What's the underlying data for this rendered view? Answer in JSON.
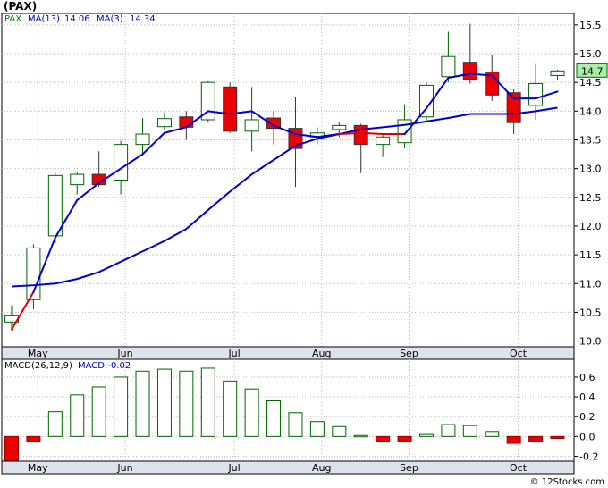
{
  "chart_data": [
    {
      "type": "candlestick",
      "ticker_label": "(PAX)",
      "legend": {
        "symbol": "PAX",
        "ma_fast_label": "MA(13)",
        "ma_fast_value": "14.06",
        "ma_slow_label": "MA(3)",
        "ma_slow_value": "14.34"
      },
      "last_price_label": "14.7",
      "ylim": [
        9.9,
        15.7
      ],
      "yticks": [
        "10.0",
        "10.5",
        "11.0",
        "11.5",
        "12.0",
        "12.5",
        "13.0",
        "13.5",
        "14.0",
        "14.5",
        "15.0",
        "15.5"
      ],
      "months": [
        {
          "label": "May",
          "pos": 1.2
        },
        {
          "label": "Jun",
          "pos": 5.2
        },
        {
          "label": "Jul",
          "pos": 10.2
        },
        {
          "label": "Aug",
          "pos": 14.2
        },
        {
          "label": "Sep",
          "pos": 18.2
        },
        {
          "label": "Oct",
          "pos": 23.2
        }
      ],
      "candles": [
        {
          "open": 10.33,
          "high": 10.62,
          "low": 10.2,
          "close": 10.45,
          "up": true
        },
        {
          "open": 10.72,
          "high": 11.68,
          "low": 10.55,
          "close": 11.62,
          "up": true
        },
        {
          "open": 11.83,
          "high": 12.92,
          "low": 11.7,
          "close": 12.88,
          "up": true
        },
        {
          "open": 12.72,
          "high": 12.95,
          "low": 12.55,
          "close": 12.9,
          "up": true
        },
        {
          "open": 12.9,
          "high": 13.3,
          "low": 12.68,
          "close": 12.72,
          "up": false
        },
        {
          "open": 12.8,
          "high": 13.48,
          "low": 12.55,
          "close": 13.42,
          "up": true
        },
        {
          "open": 13.42,
          "high": 13.88,
          "low": 13.25,
          "close": 13.6,
          "up": true
        },
        {
          "open": 13.73,
          "high": 13.98,
          "low": 13.68,
          "close": 13.87,
          "up": true
        },
        {
          "open": 13.9,
          "high": 14.0,
          "low": 13.5,
          "close": 13.72,
          "up": false
        },
        {
          "open": 13.85,
          "high": 14.52,
          "low": 13.8,
          "close": 14.5,
          "up": true
        },
        {
          "open": 14.42,
          "high": 14.5,
          "low": 13.62,
          "close": 13.65,
          "up": false
        },
        {
          "open": 13.65,
          "high": 14.42,
          "low": 13.3,
          "close": 13.85,
          "up": true
        },
        {
          "open": 13.88,
          "high": 14.0,
          "low": 13.42,
          "close": 13.7,
          "up": false
        },
        {
          "open": 13.7,
          "high": 14.25,
          "low": 12.68,
          "close": 13.35,
          "up": false
        },
        {
          "open": 13.55,
          "high": 13.72,
          "low": 13.42,
          "close": 13.62,
          "up": true
        },
        {
          "open": 13.68,
          "high": 13.8,
          "low": 13.55,
          "close": 13.75,
          "up": true
        },
        {
          "open": 13.75,
          "high": 13.78,
          "low": 12.92,
          "close": 13.42,
          "up": false
        },
        {
          "open": 13.42,
          "high": 13.6,
          "low": 13.2,
          "close": 13.55,
          "up": true
        },
        {
          "open": 13.45,
          "high": 14.12,
          "low": 13.35,
          "close": 13.85,
          "up": true
        },
        {
          "open": 13.9,
          "high": 14.5,
          "low": 13.8,
          "close": 14.45,
          "up": true
        },
        {
          "open": 14.6,
          "high": 15.38,
          "low": 14.5,
          "close": 14.95,
          "up": true
        },
        {
          "open": 14.85,
          "high": 15.52,
          "low": 14.48,
          "close": 14.55,
          "up": false
        },
        {
          "open": 14.68,
          "high": 14.98,
          "low": 14.18,
          "close": 14.28,
          "up": false
        },
        {
          "open": 14.32,
          "high": 14.38,
          "low": 13.6,
          "close": 13.8,
          "up": false
        },
        {
          "open": 14.1,
          "high": 14.82,
          "low": 13.85,
          "close": 14.48,
          "up": true
        },
        {
          "open": 14.62,
          "high": 14.72,
          "low": 14.55,
          "close": 14.7,
          "up": true
        }
      ],
      "ma_slow": [
        10.2,
        10.85,
        11.8,
        12.45,
        12.75,
        13.0,
        13.25,
        13.62,
        13.72,
        14.0,
        13.95,
        14.0,
        13.75,
        13.6,
        13.55,
        13.6,
        13.62,
        13.6,
        13.6,
        14.05,
        14.58,
        14.65,
        14.62,
        14.22,
        14.22,
        14.34
      ],
      "ma_fast": [
        10.95,
        10.97,
        11.0,
        11.08,
        11.2,
        11.38,
        11.56,
        11.74,
        11.95,
        12.28,
        12.6,
        12.9,
        13.15,
        13.4,
        13.52,
        13.6,
        13.68,
        13.72,
        13.76,
        13.82,
        13.88,
        13.95,
        13.95,
        13.95,
        14.0,
        14.06
      ]
    },
    {
      "type": "bar",
      "legend": {
        "label": "MACD(26,12,9)",
        "value_label": "MACD:-0.02"
      },
      "ylim": [
        -0.25,
        0.78
      ],
      "yticks": [
        "-0.2",
        "0.0",
        "0.2",
        "0.4",
        "0.6"
      ],
      "values": [
        -0.26,
        -0.05,
        0.25,
        0.42,
        0.5,
        0.6,
        0.66,
        0.68,
        0.66,
        0.69,
        0.56,
        0.48,
        0.36,
        0.24,
        0.15,
        0.1,
        0.01,
        -0.05,
        -0.05,
        0.02,
        0.12,
        0.11,
        0.05,
        -0.07,
        -0.05,
        -0.02
      ]
    }
  ],
  "watermark": "© 12Stocks.com"
}
